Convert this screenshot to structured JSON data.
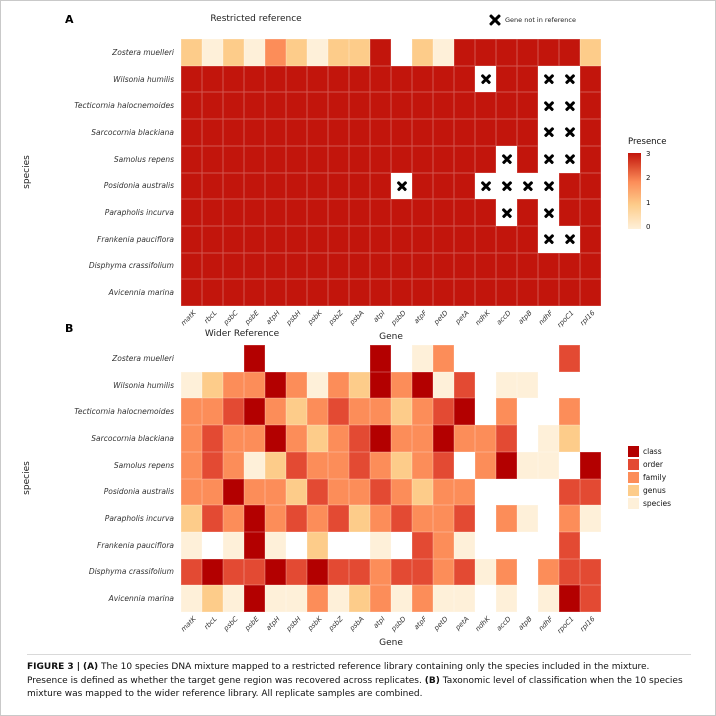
{
  "panels": {
    "a_label": "A",
    "b_label": "B"
  },
  "icons": {
    "gene_not_in_reference": "x-mark-icon"
  },
  "colors": {
    "presence": {
      "0": "#FEF0D9",
      "1": "#FDCC8A",
      "2": "#FC8D59",
      "3": "#C2150C"
    },
    "taxon": {
      "class": "#B30000",
      "order": "#E34A33",
      "family": "#FC8D59",
      "genus": "#FDCC8A",
      "species": "#FEF0D9"
    },
    "x_mark": "#000000"
  },
  "chart_data": [
    {
      "type": "heatmap",
      "title": "Restricted reference",
      "xlabel": "Gene",
      "ylabel": "species",
      "not_in_reference_label": "Gene not in reference",
      "legend": {
        "title": "Presence",
        "ticks": [
          3,
          2,
          1,
          0
        ],
        "position": "right"
      },
      "x": [
        "matK",
        "rbcL",
        "psbC",
        "psbE",
        "atpH",
        "psbH",
        "psbK",
        "psbZ",
        "psbA",
        "atpI",
        "psbD",
        "atpF",
        "petD",
        "petA",
        "ndhK",
        "accD",
        "atpB",
        "ndhF",
        "rpoC1",
        "rpl16"
      ],
      "y": [
        "Zostera muelleri",
        "Wilsonia humilis",
        "Tecticornia halocnemoides",
        "Sarcocornia blackiana",
        "Samolus repens",
        "Posidonia australis",
        "Parapholis incurva",
        "Frankenia pauciflora",
        "Disphyma crassifolium",
        "Avicennia marina"
      ],
      "values": [
        [
          1,
          0,
          1,
          0,
          2,
          1,
          0,
          1,
          1,
          3,
          null,
          1,
          0,
          3,
          3,
          3,
          3,
          3,
          3,
          1
        ],
        [
          3,
          3,
          3,
          3,
          3,
          3,
          3,
          3,
          3,
          3,
          3,
          3,
          3,
          3,
          "X",
          3,
          3,
          "X",
          "X",
          3
        ],
        [
          3,
          3,
          3,
          3,
          3,
          3,
          3,
          3,
          3,
          3,
          3,
          3,
          3,
          3,
          3,
          3,
          3,
          "X",
          "X",
          3
        ],
        [
          3,
          3,
          3,
          3,
          3,
          3,
          3,
          3,
          3,
          3,
          3,
          3,
          3,
          3,
          3,
          3,
          3,
          "X",
          "X",
          3
        ],
        [
          3,
          3,
          3,
          3,
          3,
          3,
          3,
          3,
          3,
          3,
          3,
          3,
          3,
          3,
          3,
          "X",
          3,
          "X",
          "X",
          3
        ],
        [
          3,
          3,
          3,
          3,
          3,
          3,
          3,
          3,
          3,
          3,
          "X",
          3,
          3,
          3,
          "X",
          "X",
          "X",
          "X",
          3,
          3
        ],
        [
          3,
          3,
          3,
          3,
          3,
          3,
          3,
          3,
          3,
          3,
          3,
          3,
          3,
          3,
          3,
          "X",
          3,
          "X",
          3,
          3
        ],
        [
          3,
          3,
          3,
          3,
          3,
          3,
          3,
          3,
          3,
          3,
          3,
          3,
          3,
          3,
          3,
          3,
          3,
          "X",
          "X",
          3
        ],
        [
          3,
          3,
          3,
          3,
          3,
          3,
          3,
          3,
          3,
          3,
          3,
          3,
          3,
          3,
          3,
          3,
          3,
          3,
          3,
          3
        ],
        [
          3,
          3,
          3,
          3,
          3,
          3,
          3,
          3,
          3,
          3,
          3,
          3,
          3,
          3,
          3,
          3,
          3,
          3,
          3,
          3
        ]
      ]
    },
    {
      "type": "heatmap",
      "title": "Wider Reference",
      "xlabel": "Gene",
      "ylabel": "species",
      "legend_items": [
        "class",
        "order",
        "family",
        "genus",
        "species"
      ],
      "x": [
        "matK",
        "rbcL",
        "psbC",
        "psbE",
        "atpH",
        "psbH",
        "psbK",
        "psbZ",
        "psbA",
        "atpI",
        "psbD",
        "atpF",
        "petD",
        "petA",
        "ndhK",
        "accD",
        "atpB",
        "ndhF",
        "rpoC1",
        "rpl16"
      ],
      "y": [
        "Zostera muelleri",
        "Wilsonia humilis",
        "Tecticornia halocnemoides",
        "Sarcocornia blackiana",
        "Samolus repens",
        "Posidonia australis",
        "Parapholis incurva",
        "Frankenia pauciflora",
        "Disphyma crassifolium",
        "Avicennia marina"
      ],
      "values": [
        [
          null,
          null,
          null,
          "class",
          null,
          null,
          null,
          null,
          null,
          "class",
          null,
          "species",
          "family",
          null,
          null,
          null,
          null,
          null,
          "order",
          null
        ],
        [
          "species",
          "genus",
          "family",
          "family",
          "class",
          "family",
          "species",
          "family",
          "genus",
          "class",
          "family",
          "class",
          "species",
          "order",
          null,
          "species",
          "species",
          null,
          null,
          null
        ],
        [
          "family",
          "family",
          "order",
          "class",
          "family",
          "genus",
          "family",
          "order",
          "family",
          "family",
          "genus",
          "family",
          "order",
          "class",
          null,
          "family",
          null,
          null,
          "family",
          null
        ],
        [
          "family",
          "order",
          "family",
          "family",
          "class",
          "family",
          "genus",
          "family",
          "order",
          "class",
          "family",
          "family",
          "class",
          "family",
          "family",
          "order",
          null,
          "species",
          "genus",
          null
        ],
        [
          "family",
          "order",
          "family",
          "species",
          "genus",
          "order",
          "family",
          "family",
          "order",
          "family",
          "genus",
          "family",
          "order",
          null,
          "family",
          "class",
          "species",
          "species",
          null,
          "class"
        ],
        [
          "family",
          "family",
          "class",
          "family",
          "family",
          "genus",
          "order",
          "family",
          "family",
          "order",
          "family",
          "genus",
          "family",
          "family",
          null,
          null,
          null,
          null,
          "order",
          "order"
        ],
        [
          "genus",
          "order",
          "family",
          "class",
          "family",
          "order",
          "family",
          "order",
          "genus",
          "family",
          "order",
          "family",
          "family",
          "order",
          null,
          "family",
          "species",
          null,
          "family",
          "species"
        ],
        [
          "species",
          null,
          "species",
          "class",
          "species",
          null,
          "genus",
          null,
          null,
          "species",
          null,
          "order",
          "family",
          "species",
          null,
          null,
          null,
          null,
          "order",
          null
        ],
        [
          "order",
          "class",
          "order",
          "order",
          "class",
          "order",
          "class",
          "order",
          "order",
          "family",
          "order",
          "order",
          "family",
          "order",
          "species",
          "family",
          null,
          "family",
          "order",
          "order"
        ],
        [
          "species",
          "genus",
          "species",
          "class",
          "species",
          "species",
          "family",
          "species",
          "genus",
          "family",
          "species",
          "family",
          "species",
          "species",
          null,
          "species",
          null,
          "species",
          "class",
          "order"
        ]
      ]
    }
  ],
  "caption": {
    "label": "FIGURE 3 |",
    "a_marker": "(A)",
    "a_text": "The 10 species DNA mixture mapped to a restricted reference library containing only the species included in the mixture. Presence is defined as whether the target gene region was recovered across replicates.",
    "b_marker": "(B)",
    "b_text": "Taxonomic level of classification when the 10 species mixture was mapped to the wider reference library. All replicate samples are combined."
  }
}
